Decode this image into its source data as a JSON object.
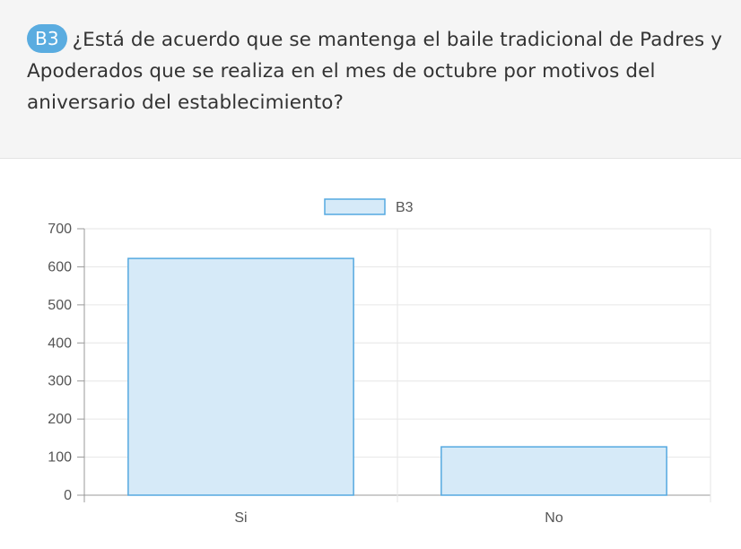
{
  "question": {
    "badge": "B3",
    "text": "¿Está de acuerdo que se mantenga el baile tradicional de Padres y Apoderados que se realiza en el mes de octubre por motivos del aniversario del establecimiento?"
  },
  "colors": {
    "badge": "#5aace0",
    "bar_fill": "#d6eaf8",
    "bar_stroke": "#55a9e0",
    "grid": "#e6e6e6",
    "axis": "#999999",
    "header_bg": "#f5f5f5"
  },
  "chart_data": {
    "type": "bar",
    "categories": [
      "Si",
      "No"
    ],
    "series": [
      {
        "name": "B3",
        "values": [
          622,
          127
        ]
      }
    ],
    "ylim": [
      0,
      700
    ],
    "yticks": [
      0,
      100,
      200,
      300,
      400,
      500,
      600,
      700
    ],
    "legend_position": "top-center",
    "grid": true
  }
}
